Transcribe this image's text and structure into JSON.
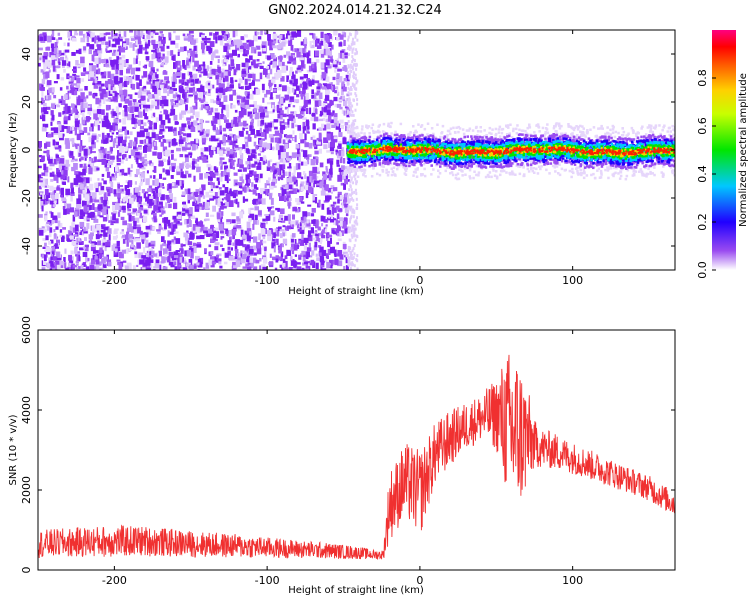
{
  "title": "GN02.2024.014.21.32.C24",
  "chart_data": [
    {
      "type": "heatmap",
      "xlabel": "Height of straight line (km)",
      "ylabel": "Frequency (Hz)",
      "xlim": [
        -250,
        167
      ],
      "ylim": [
        -50,
        50
      ],
      "xticks": [
        -200,
        -100,
        0,
        100
      ],
      "yticks": [
        -40,
        -20,
        0,
        20,
        40
      ],
      "noise_region_x": [
        -250,
        -48
      ],
      "signal_band": {
        "x_start": -48,
        "x_end": 167,
        "center_hz": 0,
        "half_width_hz": 5
      },
      "colorbar": {
        "label": "Normalized spectral amplitude",
        "range": [
          0,
          1
        ],
        "ticks": [
          "0.0",
          "0.2",
          "0.4",
          "0.6",
          "0.8"
        ],
        "colormap": [
          "#ffffff",
          "#7a00e6",
          "#0000ff",
          "#00e5e5",
          "#00e600",
          "#ffff00",
          "#ff8000",
          "#ff0000",
          "#ff00a0"
        ]
      },
      "grid": false
    },
    {
      "type": "line",
      "xlabel": "Height of straight line (km)",
      "ylabel": "SNR (10 * v/v)",
      "xlim": [
        -250,
        167
      ],
      "ylim": [
        0,
        6000
      ],
      "xticks": [
        -200,
        -100,
        0,
        100
      ],
      "yticks": [
        0,
        2000,
        4000,
        6000
      ],
      "color": "#f03030",
      "series": [
        {
          "x": [
            -250,
            -220,
            -200,
            -180,
            -150,
            -120,
            -100,
            -80,
            -60,
            -40,
            -30,
            -24,
            -20,
            -15,
            -10,
            -5,
            0,
            5,
            10,
            20,
            30,
            40,
            50,
            55,
            60,
            65,
            70,
            75,
            80,
            90,
            100,
            110,
            120,
            130,
            140,
            150,
            160,
            167
          ],
          "y": [
            650,
            700,
            720,
            720,
            650,
            600,
            560,
            520,
            480,
            430,
            380,
            380,
            1600,
            1900,
            2200,
            2100,
            1900,
            2400,
            2900,
            3300,
            3600,
            3800,
            3900,
            3700,
            3500,
            3400,
            3300,
            3150,
            3050,
            2950,
            2800,
            2650,
            2500,
            2350,
            2200,
            2050,
            1800,
            1650
          ],
          "noise_amplitude": [
            350,
            380,
            400,
            380,
            330,
            300,
            260,
            230,
            200,
            160,
            120,
            120,
            900,
            900,
            1000,
            1000,
            1100,
            900,
            800,
            700,
            600,
            600,
            900,
            1600,
            2100,
            1900,
            1400,
            600,
            500,
            450,
            400,
            380,
            360,
            340,
            320,
            320,
            320,
            320
          ]
        }
      ],
      "grid": false
    }
  ]
}
